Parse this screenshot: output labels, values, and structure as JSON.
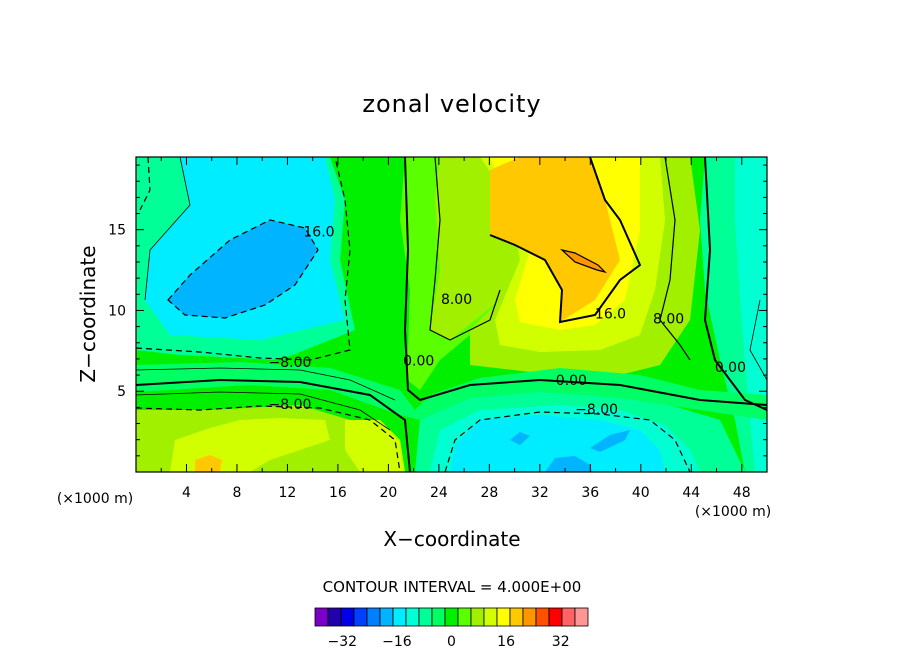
{
  "chart_data": {
    "type": "contour",
    "title": "zonal velocity",
    "xlabel": "X−coordinate",
    "ylabel": "Z−coordinate",
    "x_unit_left": "(×1000 m)",
    "x_unit_right": "(×1000 m)",
    "xlim": [
      0,
      50
    ],
    "ylim": [
      0,
      19.5
    ],
    "xticks": [
      4,
      8,
      12,
      16,
      20,
      24,
      28,
      32,
      36,
      40,
      44,
      48
    ],
    "yticks": [
      5,
      10,
      15
    ],
    "contour_interval_text": "CONTOUR INTERVAL = 4.000E+00",
    "contour_interval": 4.0,
    "contour_labels": [
      {
        "text": "16.0",
        "x": 14.5,
        "y": 14.9
      },
      {
        "text": "8.00",
        "x": 25.4,
        "y": 10.7
      },
      {
        "text": "16.0",
        "x": 37.6,
        "y": 9.8
      },
      {
        "text": "8.00",
        "x": 42.2,
        "y": 9.5
      },
      {
        "text": "0.00",
        "x": 22.4,
        "y": 6.9
      },
      {
        "text": "−8.00",
        "x": 12.2,
        "y": 6.8
      },
      {
        "text": "0.00",
        "x": 34.5,
        "y": 5.7
      },
      {
        "text": "−8.00",
        "x": 12.2,
        "y": 4.2
      },
      {
        "text": "−8.00",
        "x": 36.5,
        "y": 3.9
      },
      {
        "text": "0.00",
        "x": 47.1,
        "y": 6.5
      }
    ],
    "colorbar": {
      "levels": [
        -40,
        -36,
        -32,
        -28,
        -24,
        -20,
        -16,
        -12,
        -8,
        -4,
        0,
        4,
        8,
        12,
        16,
        20,
        24,
        28,
        32,
        36,
        40
      ],
      "tick_labels": [
        "−32",
        "−16",
        "0",
        "16",
        "32"
      ],
      "tick_values": [
        -32,
        -16,
        0,
        16,
        32
      ],
      "colors": [
        "#7a00c8",
        "#2200aa",
        "#0000e6",
        "#0040ff",
        "#0080ff",
        "#00b4ff",
        "#00ecff",
        "#00ffd2",
        "#00ff96",
        "#00ff64",
        "#00f000",
        "#5aff00",
        "#a0f000",
        "#d2ff00",
        "#ffff00",
        "#ffc800",
        "#ff9600",
        "#ff5000",
        "#ff0000",
        "#ff6464",
        "#ff9696"
      ]
    },
    "regions": [
      {
        "level": 0,
        "label": "background green",
        "x": 25,
        "y": 9.75
      },
      {
        "level": -12,
        "label": "upper-left cyan region",
        "x": 8,
        "y": 14
      },
      {
        "level": -20,
        "label": "upper-left blue core",
        "x": 9,
        "y": 12.5
      },
      {
        "level": 20,
        "label": "upper-right orange core",
        "x": 34,
        "y": 14
      },
      {
        "level": 12,
        "label": "upper-right yellow region",
        "x": 34,
        "y": 11
      },
      {
        "level": -12,
        "label": "lower-middle cyan region",
        "x": 34,
        "y": 2.5
      }
    ]
  }
}
